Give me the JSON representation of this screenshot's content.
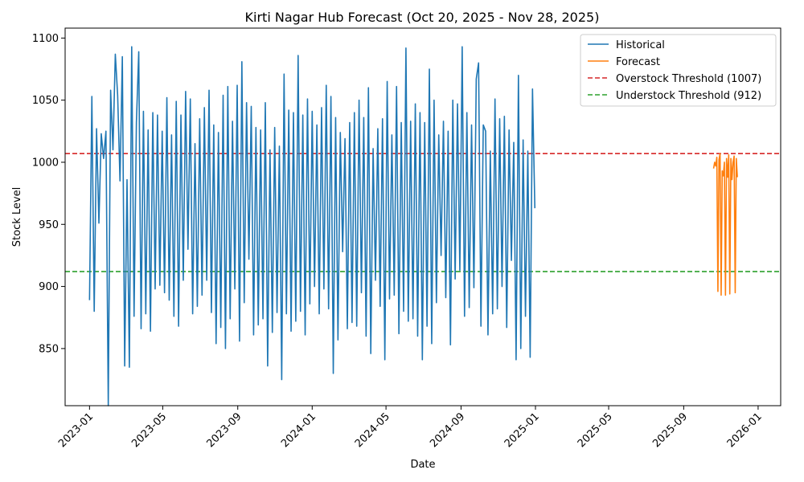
{
  "chart_data": {
    "type": "line",
    "title": "Kirti Nagar Hub Forecast (Oct 20, 2025 - Nov 28, 2025)",
    "xlabel": "Date",
    "ylabel": "Stock Level",
    "ylim": [
      804,
      1108
    ],
    "xlim": [
      "2022-11-22",
      "2026-02-07"
    ],
    "x_ticks": [
      "2023-01",
      "2023-05",
      "2023-09",
      "2024-01",
      "2024-05",
      "2024-09",
      "2025-01",
      "2025-05",
      "2025-09",
      "2026-01"
    ],
    "y_ticks": [
      850,
      900,
      950,
      1000,
      1050,
      1100
    ],
    "grid": false,
    "legend_placement": "top-right",
    "colors": {
      "historical": "#1f77b4",
      "forecast": "#ff7f0e",
      "overstock": "#d62728",
      "understock": "#2ca02c"
    },
    "series": [
      {
        "name": "Historical",
        "x_start": "2023-01-01",
        "x_end": "2024-12-31",
        "values": [
          889,
          1053,
          880,
          1027,
          951,
          1023,
          1003,
          1025,
          804,
          1058,
          1010,
          1087,
          1054,
          985,
          1085,
          836,
          986,
          835,
          1093,
          876,
          1032,
          1089,
          866,
          1041,
          878,
          1026,
          864,
          1040,
          898,
          1038,
          901,
          1025,
          895,
          1052,
          889,
          1022,
          876,
          1049,
          868,
          1038,
          905,
          1057,
          930,
          1051,
          878,
          1015,
          884,
          1035,
          893,
          1044,
          905,
          1058,
          879,
          1030,
          854,
          1024,
          867,
          1054,
          850,
          1061,
          874,
          1033,
          898,
          1062,
          856,
          1081,
          887,
          1048,
          922,
          1045,
          861,
          1028,
          869,
          1026,
          874,
          1048,
          836,
          1010,
          863,
          1028,
          879,
          1013,
          825,
          1071,
          878,
          1042,
          864,
          1040,
          872,
          1086,
          880,
          1038,
          861,
          1051,
          886,
          1041,
          900,
          1030,
          878,
          1044,
          898,
          1062,
          882,
          1053,
          830,
          1036,
          857,
          1024,
          928,
          1019,
          866,
          1032,
          871,
          1040,
          868,
          1050,
          895,
          1036,
          860,
          1060,
          846,
          1011,
          905,
          1027,
          884,
          1035,
          841,
          1065,
          890,
          1022,
          893,
          1061,
          862,
          1032,
          880,
          1092,
          872,
          1033,
          874,
          1047,
          860,
          1040,
          841,
          1032,
          868,
          1075,
          854,
          1050,
          887,
          1022,
          925,
          1033,
          891,
          1025,
          853,
          1050,
          906,
          1047,
          913,
          1093,
          876,
          1040,
          883,
          1030,
          899,
          1067,
          1080,
          868,
          1030,
          1025,
          861,
          1009,
          878,
          1051,
          882,
          1035,
          900,
          1037,
          867,
          1026,
          921,
          1016,
          841,
          1070,
          850,
          1018,
          876,
          1009,
          843,
          1059,
          963
        ]
      },
      {
        "name": "Forecast",
        "x_start": "2025-10-20",
        "x_end": "2025-11-28",
        "values": [
          995,
          1000,
          997,
          1004,
          896,
          1002,
          1007,
          893,
          993,
          989,
          1000,
          893,
          1003,
          988,
          1006,
          894,
          1003,
          986,
          1000,
          1005,
          895,
          1003,
          988
        ]
      }
    ],
    "thresholds": [
      {
        "name": "Overstock Threshold (1007)",
        "value": 1007,
        "style": "dashed"
      },
      {
        "name": "Understock Threshold (912)",
        "value": 912,
        "style": "dashed"
      }
    ]
  }
}
